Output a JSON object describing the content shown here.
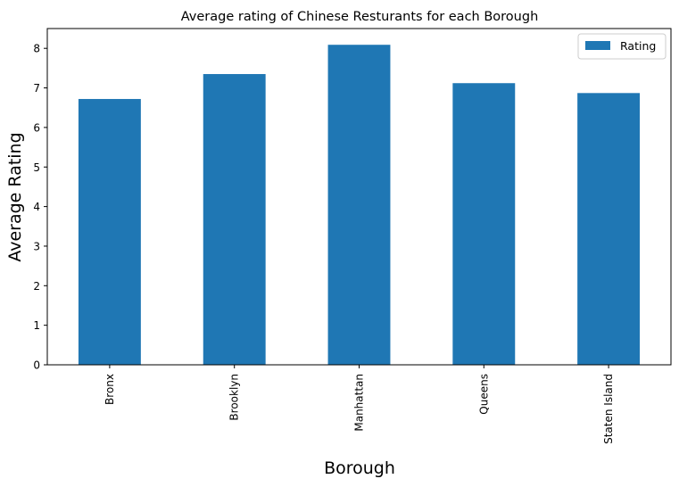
{
  "chart_data": {
    "type": "bar",
    "title": "Average rating of Chinese Resturants for each Borough",
    "xlabel": "Borough",
    "ylabel": "Average Rating",
    "categories": [
      "Bronx",
      "Brooklyn",
      "Manhattan",
      "Queens",
      "Staten Island"
    ],
    "series": [
      {
        "name": "Rating",
        "values": [
          6.72,
          7.35,
          8.09,
          7.12,
          6.87
        ],
        "color": "#1f77b4"
      }
    ],
    "ylim": [
      0,
      8.5
    ],
    "yticks": [
      0,
      1,
      2,
      3,
      4,
      5,
      6,
      7,
      8
    ],
    "grid": false,
    "legend": "top-right"
  }
}
